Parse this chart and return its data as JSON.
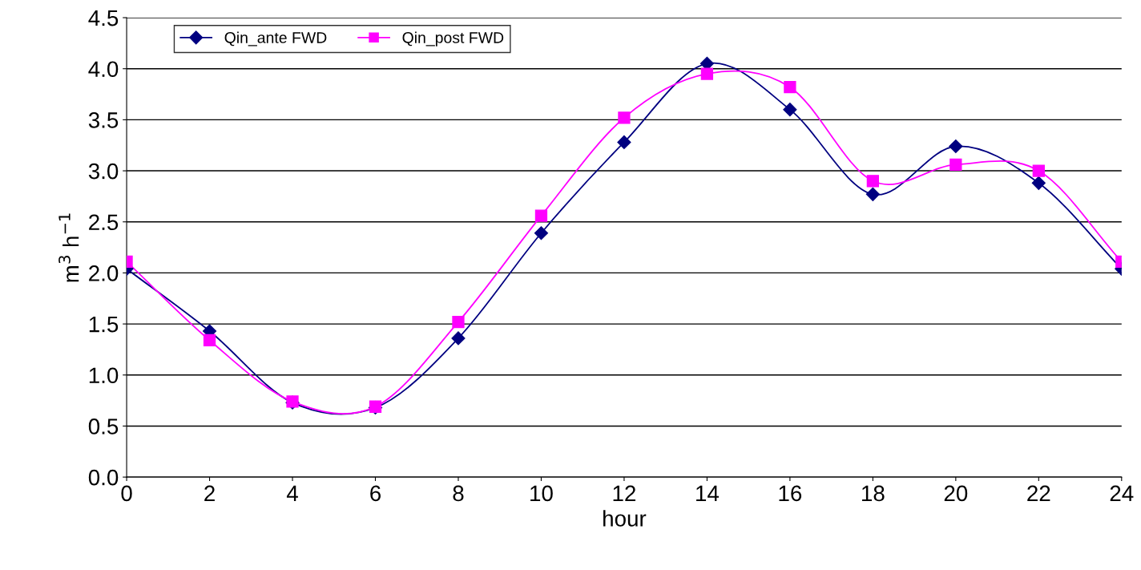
{
  "chart_data": {
    "type": "line",
    "xlabel": "hour",
    "ylabel": "m$^{3}$ h$^{−1}$",
    "x": [
      0,
      2,
      4,
      6,
      8,
      10,
      12,
      14,
      16,
      18,
      20,
      22,
      24
    ],
    "series": [
      {
        "name": "Qin_ante FWD",
        "color": "#000080",
        "marker": "diamond",
        "values": [
          2.04,
          1.43,
          0.73,
          0.68,
          1.36,
          2.39,
          3.28,
          4.05,
          3.6,
          2.77,
          3.24,
          2.88,
          2.04
        ]
      },
      {
        "name": "Qin_post FWD",
        "color": "#ff00ff",
        "marker": "square",
        "values": [
          2.11,
          1.34,
          0.74,
          0.69,
          1.52,
          2.56,
          3.52,
          3.95,
          3.82,
          2.9,
          3.06,
          3.0,
          2.11
        ]
      }
    ],
    "xlim": [
      0,
      24
    ],
    "xticks": [
      0,
      2,
      4,
      6,
      8,
      10,
      12,
      14,
      16,
      18,
      20,
      22,
      24
    ],
    "ylim": [
      0,
      4.5
    ],
    "yticks": [
      {
        "value": 0,
        "label": "0.0"
      },
      {
        "value": 0.5,
        "label": "0.5"
      },
      {
        "value": 1,
        "label": "1.0"
      },
      {
        "value": 1.5,
        "label": "1.5"
      },
      {
        "value": 2,
        "label": "2.0"
      },
      {
        "value": 2.5,
        "label": "2.5"
      },
      {
        "value": 3,
        "label": "3.0"
      },
      {
        "value": 3.5,
        "label": "3.5"
      },
      {
        "value": 4,
        "label": "4.0"
      },
      {
        "value": 4.5,
        "label": "4.5"
      }
    ],
    "grid": "y",
    "legend": "top left",
    "line_style": "solid"
  }
}
